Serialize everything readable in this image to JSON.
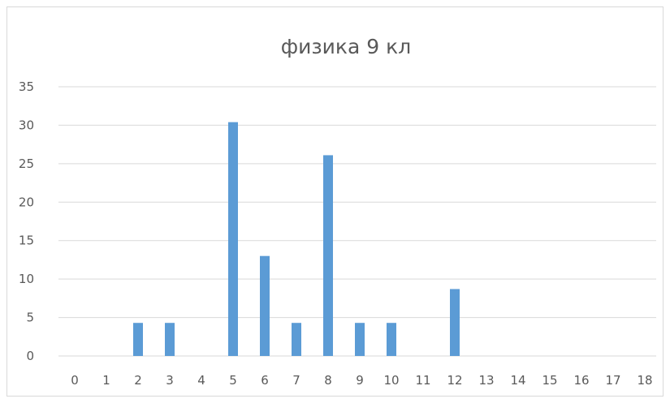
{
  "chart_data": {
    "type": "bar",
    "title": "физика 9 кл",
    "xlabel": "",
    "ylabel": "",
    "categories": [
      "0",
      "1",
      "2",
      "3",
      "4",
      "5",
      "6",
      "7",
      "8",
      "9",
      "10",
      "11",
      "12",
      "13",
      "14",
      "15",
      "16",
      "17",
      "18"
    ],
    "values": [
      0,
      0,
      4.3,
      4.3,
      0,
      30.4,
      13,
      4.3,
      26.1,
      4.3,
      4.3,
      0,
      8.7,
      0,
      0,
      0,
      0,
      0,
      0
    ],
    "ylim": [
      0,
      35
    ],
    "yticks": [
      "0",
      "5",
      "10",
      "15",
      "20",
      "25",
      "30",
      "35"
    ],
    "grid": true,
    "legend": "none",
    "colors": {
      "bar": "#5b9bd5",
      "grid": "#d9d9d9",
      "text": "#595959"
    }
  }
}
